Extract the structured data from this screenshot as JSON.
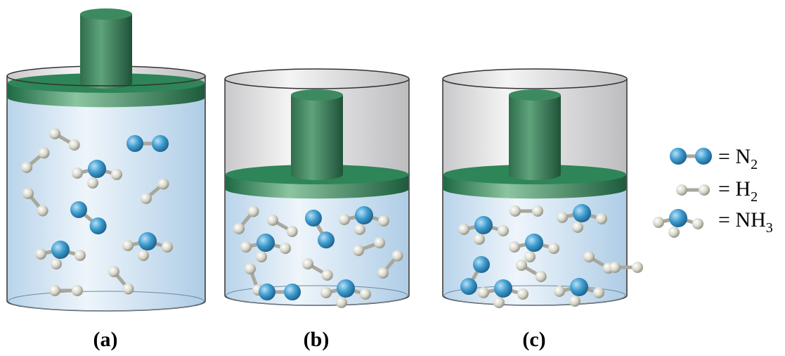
{
  "panels": [
    {
      "label": "(a)"
    },
    {
      "label": "(b)"
    },
    {
      "label": "(c)"
    }
  ],
  "legend": [
    {
      "text": "= N",
      "subscript": "2"
    },
    {
      "text": "= H",
      "subscript": "2"
    },
    {
      "text": "= NH",
      "subscript": "3"
    }
  ]
}
